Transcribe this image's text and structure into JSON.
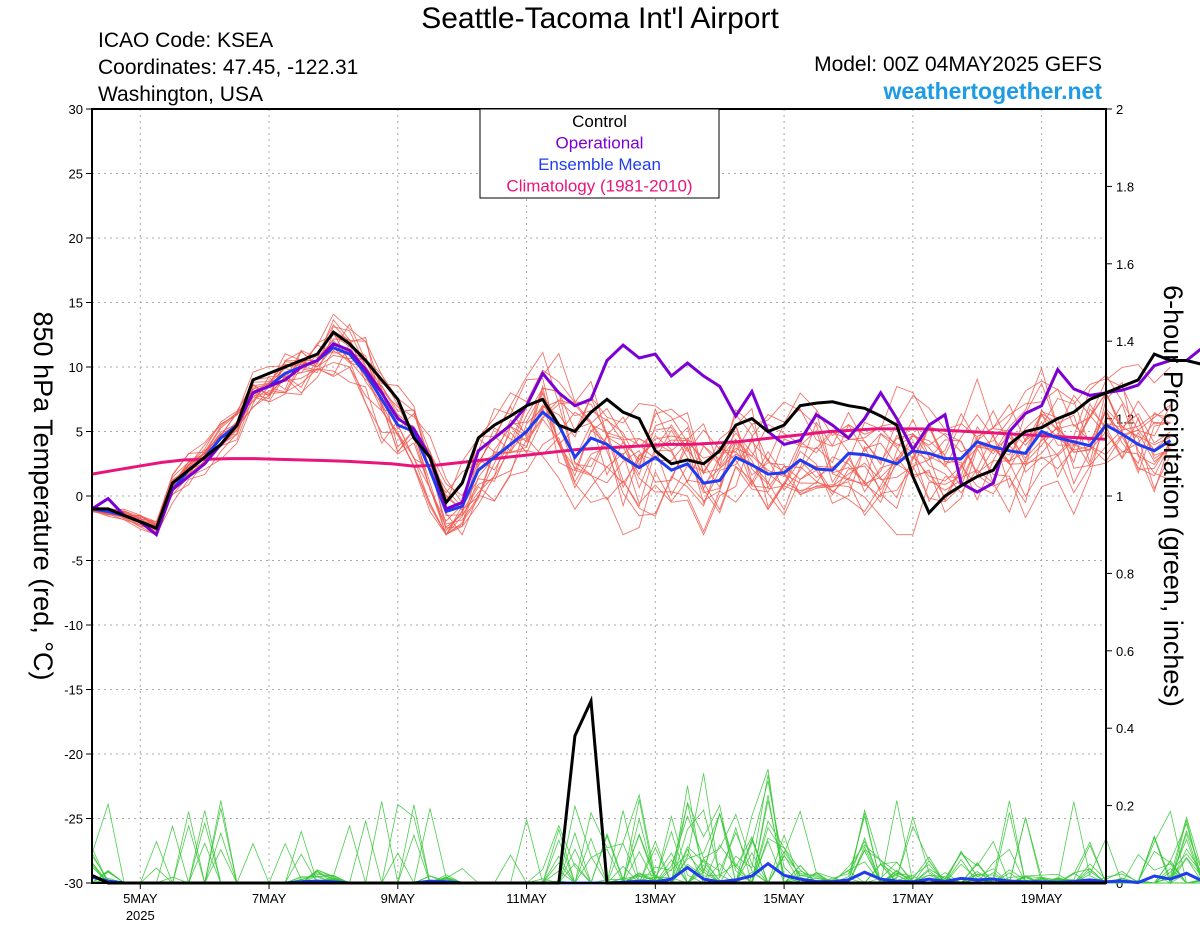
{
  "colors": {
    "control": "#000000",
    "operational": "#7b00d4",
    "ensemble_mean": "#1f3cf0",
    "climatology": "#e8157a",
    "members_temp": "#f05a50",
    "members_precip": "#38c838",
    "site": "#1e9be6",
    "grid": "#aaaaaa"
  },
  "header": {
    "title": "Seattle-Tacoma Int'l Airport",
    "icao": "ICAO Code: KSEA",
    "coords": "Coordinates: 47.45, -122.31",
    "place": "Washington, USA",
    "model": "Model: 00Z 04MAY2025 GEFS",
    "site": "weathertogether.net"
  },
  "chart_data": {
    "type": "line",
    "ylabel_left": "850 hPa Temperature (red, °C)",
    "ylabel_right": "6-hour Precipitation (green, inches)",
    "ylim_left": [
      -30,
      30
    ],
    "ylim_right": [
      0,
      2
    ],
    "yticks_left": [
      "30",
      "25",
      "20",
      "15",
      "10",
      "5",
      "0",
      "-5",
      "-10",
      "-15",
      "-20",
      "-25",
      "-30"
    ],
    "yticks_right": [
      "2",
      "1.8",
      "1.6",
      "1.4",
      "1.2",
      "1",
      "0.8",
      "0.6",
      "0.4",
      "0.2",
      "0"
    ],
    "xlim": [
      "2025-05-04T06Z",
      "2025-05-20T00Z"
    ],
    "grid": true,
    "legend_position": "top-center",
    "xticks": [
      {
        "t": "2025-05-05T00Z",
        "label": "5MAY",
        "sublabel": "2025"
      },
      {
        "t": "2025-05-07T00Z",
        "label": "7MAY"
      },
      {
        "t": "2025-05-09T00Z",
        "label": "9MAY"
      },
      {
        "t": "2025-05-11T00Z",
        "label": "11MAY"
      },
      {
        "t": "2025-05-13T00Z",
        "label": "13MAY"
      },
      {
        "t": "2025-05-15T00Z",
        "label": "15MAY"
      },
      {
        "t": "2025-05-17T00Z",
        "label": "17MAY"
      },
      {
        "t": "2025-05-19T00Z",
        "label": "19MAY"
      }
    ],
    "legend": [
      "Control",
      "Operational",
      "Ensemble Mean",
      "Climatology (1981-2010)"
    ],
    "temperature": {
      "x_start": "2025-05-04T06Z",
      "interval_hours": 6,
      "control": [
        -1,
        -1,
        -1.5,
        -2,
        -2.5,
        1,
        2,
        3,
        4,
        5.5,
        9,
        9.5,
        10,
        10.5,
        11,
        12.7,
        11.8,
        10.5,
        9,
        7.5,
        4.5,
        3,
        -0.5,
        1,
        4.5,
        5.5,
        6.2,
        7,
        7.5,
        5.5,
        5,
        6.5,
        7.5,
        6.5,
        6,
        3.5,
        2.5,
        2.8,
        2.5,
        3.5,
        5.5,
        6,
        5,
        5.5,
        7,
        7.2,
        7.3,
        7,
        6.8,
        6.2,
        5.5,
        1.5,
        -1.3,
        0,
        0.8,
        1.5,
        2,
        4,
        5,
        5.3,
        6,
        6.5,
        7.5,
        8,
        8.5,
        9,
        11,
        10.5,
        10.5,
        10.2,
        10
      ],
      "operational": [
        -1,
        -0.2,
        -1.5,
        -2,
        -3,
        0.5,
        1.5,
        2.5,
        4,
        5.5,
        8,
        8.5,
        9,
        10,
        10.5,
        11.8,
        11.3,
        9.8,
        8,
        6,
        5.2,
        3,
        -1,
        -0.5,
        3.5,
        4.5,
        5.5,
        7,
        9.5,
        8,
        7,
        7.5,
        10.5,
        11.7,
        10.7,
        11,
        9.3,
        10.3,
        9.3,
        8.5,
        6.2,
        8.1,
        5,
        4,
        4.3,
        6.3,
        5.5,
        4.5,
        6,
        8,
        6,
        3.6,
        5.5,
        6.3,
        1,
        0.3,
        1,
        5,
        6.4,
        7,
        9.8,
        8.3,
        7.8,
        8,
        8.2,
        8.6,
        10.1,
        10.5,
        10.5,
        11.5,
        12.8
      ],
      "ensemble_mean": [
        -1,
        -1.2,
        -1.5,
        -2,
        -2.5,
        0.5,
        2,
        3,
        4.5,
        5.5,
        8,
        8.5,
        9.5,
        10,
        10.5,
        11.5,
        11,
        9.5,
        7.5,
        5.5,
        5,
        2,
        -1.2,
        -0.8,
        2,
        3,
        4,
        5,
        6.5,
        5.5,
        3,
        4.5,
        4,
        3,
        2.2,
        3,
        2,
        2.5,
        1,
        1.2,
        3,
        2.4,
        1.7,
        1.8,
        2.8,
        2.1,
        2,
        3.3,
        3.2,
        2.9,
        2.5,
        3.5,
        3.3,
        2.9,
        2.9,
        4.2,
        3.8,
        3.5,
        3.3,
        5,
        4.5,
        4.2,
        3.9,
        5.5,
        4.8,
        4,
        3.5,
        4.3
      ],
      "climatology": [
        1.7,
        2,
        2.3,
        2.6,
        2.8,
        2.85,
        2.9,
        2.9,
        2.85,
        2.8,
        2.75,
        2.7,
        2.6,
        2.5,
        2.3,
        2.4,
        2.6,
        2.8,
        3.0,
        3.2,
        3.4,
        3.6,
        3.7,
        3.8,
        3.9,
        4.0,
        4.0,
        4.1,
        4.2,
        4.4,
        4.6,
        4.8,
        5.0,
        5.1,
        5.2,
        5.2,
        5.2,
        5.1,
        5.0,
        4.9,
        4.8,
        4.7,
        4.6,
        4.5,
        4.4
      ],
      "members_count": 20,
      "members_range": [
        -3,
        14.5
      ]
    },
    "precipitation": {
      "control": [
        {
          "t": "2025-05-04T06Z",
          "v": 0.02
        },
        {
          "t": "2025-05-04T12Z",
          "v": 0
        },
        {
          "t": "2025-05-11T12Z",
          "v": 0
        },
        {
          "t": "2025-05-11T18Z",
          "v": 0.38
        },
        {
          "t": "2025-05-12T00Z",
          "v": 0.47
        },
        {
          "t": "2025-05-12T06Z",
          "v": 0
        },
        {
          "t": "2025-05-20T00Z",
          "v": 0
        }
      ],
      "ensemble_mean": [
        0.015,
        0.005,
        0,
        0,
        0,
        0,
        0,
        0,
        0,
        0,
        0,
        0,
        0,
        0.003,
        0.005,
        0.003,
        0,
        0,
        0,
        0,
        0,
        0.005,
        0.003,
        0,
        0,
        0,
        0,
        0,
        0,
        0,
        0,
        0,
        0,
        0.002,
        0.005,
        0.003,
        0.01,
        0.04,
        0.01,
        0.003,
        0.008,
        0.018,
        0.05,
        0.02,
        0.01,
        0.004,
        0.003,
        0.008,
        0.028,
        0.01,
        0.005,
        0.003,
        0.01,
        0.004,
        0.012,
        0.008,
        0.01,
        0.005,
        0.003,
        0.003,
        0.002,
        0.004,
        0.008,
        0.003,
        0.005,
        0.001,
        0.018,
        0.01,
        0.025,
        0.005
      ],
      "members_count": 20,
      "members_max": 0.32
    }
  }
}
